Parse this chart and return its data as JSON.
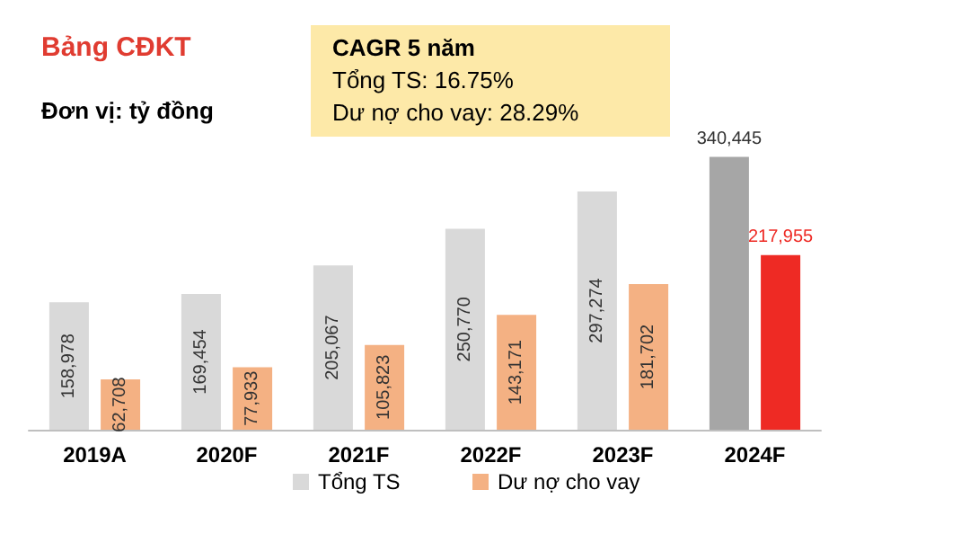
{
  "chart_data": {
    "type": "bar",
    "title": "Bảng CĐKT",
    "subtitle": "Đơn vị: tỷ đồng",
    "annotations": [
      "CAGR 5 năm",
      "Tổng TS: 16.75%",
      "Dư nợ cho vay: 28.29%"
    ],
    "categories": [
      "2019A",
      "2020F",
      "2021F",
      "2022F",
      "2023F",
      "2024F"
    ],
    "series": [
      {
        "name": "Tổng TS",
        "color": "#d9d9d9",
        "colors": [
          "#d9d9d9",
          "#d9d9d9",
          "#d9d9d9",
          "#d9d9d9",
          "#d9d9d9",
          "#a6a6a6"
        ],
        "values": [
          158978,
          169454,
          205067,
          250770,
          297274,
          340445
        ],
        "value_labels": [
          "158,978",
          "169,454",
          "205,067",
          "250,770",
          "297,274",
          "340,445"
        ]
      },
      {
        "name": "Dư nợ cho vay",
        "color": "#f4b183",
        "colors": [
          "#f4b183",
          "#f4b183",
          "#f4b183",
          "#f4b183",
          "#f4b183",
          "#ee2a24"
        ],
        "values": [
          62708,
          77933,
          105823,
          143171,
          181702,
          217955
        ],
        "value_labels": [
          "62,708",
          "77,933",
          "105,823",
          "143,171",
          "181,702",
          "217,955"
        ]
      }
    ],
    "legend": "bottom"
  }
}
